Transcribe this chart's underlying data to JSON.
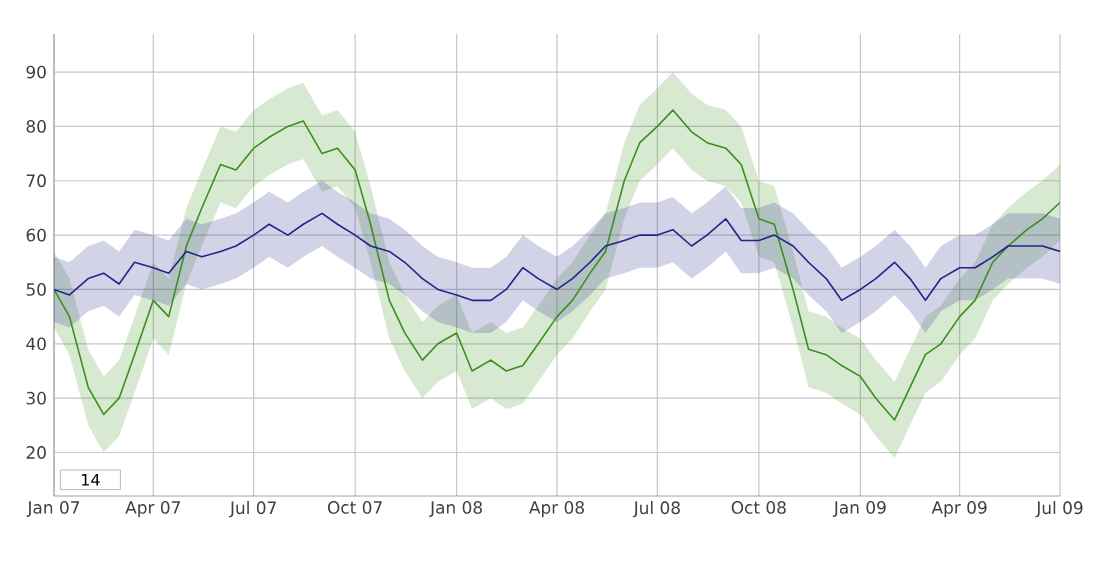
{
  "chart_data": {
    "type": "line",
    "x": [
      "2007-01-01",
      "2007-01-15",
      "2007-02-01",
      "2007-02-15",
      "2007-03-01",
      "2007-03-15",
      "2007-04-01",
      "2007-04-15",
      "2007-05-01",
      "2007-05-15",
      "2007-06-01",
      "2007-06-15",
      "2007-07-01",
      "2007-07-15",
      "2007-08-01",
      "2007-08-15",
      "2007-09-01",
      "2007-09-15",
      "2007-10-01",
      "2007-10-15",
      "2007-11-01",
      "2007-11-15",
      "2007-12-01",
      "2007-12-15",
      "2008-01-01",
      "2008-01-15",
      "2008-02-01",
      "2008-02-15",
      "2008-03-01",
      "2008-03-15",
      "2008-04-01",
      "2008-04-15",
      "2008-05-01",
      "2008-05-15",
      "2008-06-01",
      "2008-06-15",
      "2008-07-01",
      "2008-07-15",
      "2008-08-01",
      "2008-08-15",
      "2008-09-01",
      "2008-09-15",
      "2008-10-01",
      "2008-10-15",
      "2008-11-01",
      "2008-11-15",
      "2008-12-01",
      "2008-12-15",
      "2009-01-01",
      "2009-01-15",
      "2009-02-01",
      "2009-02-15",
      "2009-03-01",
      "2009-03-15",
      "2009-04-01",
      "2009-04-15",
      "2009-05-01",
      "2009-05-15",
      "2009-06-01",
      "2009-06-15",
      "2009-07-01"
    ],
    "series": [
      {
        "color": "#3a8f1e",
        "values": [
          50,
          45,
          32,
          27,
          30,
          38,
          48,
          45,
          58,
          65,
          73,
          72,
          76,
          78,
          80,
          81,
          75,
          76,
          72,
          62,
          48,
          42,
          37,
          40,
          42,
          35,
          37,
          35,
          36,
          40,
          45,
          48,
          53,
          57,
          70,
          77,
          80,
          83,
          79,
          77,
          76,
          73,
          63,
          62,
          50,
          39,
          38,
          36,
          34,
          30,
          26,
          32,
          38,
          40,
          45,
          48,
          55,
          58,
          61,
          63,
          66
        ],
        "lower": [
          43,
          38,
          25,
          20,
          23,
          31,
          41,
          38,
          51,
          58,
          66,
          65,
          69,
          71,
          73,
          74,
          68,
          69,
          65,
          55,
          41,
          35,
          30,
          33,
          35,
          28,
          30,
          28,
          29,
          33,
          38,
          41,
          46,
          50,
          63,
          70,
          73,
          76,
          72,
          70,
          69,
          66,
          56,
          55,
          43,
          32,
          31,
          29,
          27,
          23,
          19,
          25,
          31,
          33,
          38,
          41,
          48,
          51,
          54,
          56,
          59
        ],
        "upper": [
          57,
          52,
          39,
          34,
          37,
          45,
          55,
          52,
          65,
          72,
          80,
          79,
          83,
          85,
          87,
          88,
          82,
          83,
          79,
          69,
          55,
          49,
          44,
          47,
          49,
          42,
          44,
          42,
          43,
          47,
          52,
          55,
          60,
          64,
          77,
          84,
          87,
          90,
          86,
          84,
          83,
          80,
          70,
          69,
          57,
          46,
          45,
          43,
          41,
          37,
          33,
          39,
          45,
          47,
          52,
          55,
          62,
          65,
          68,
          70,
          73
        ]
      },
      {
        "color": "#23238c",
        "values": [
          50,
          49,
          52,
          53,
          51,
          55,
          54,
          53,
          57,
          56,
          57,
          58,
          60,
          62,
          60,
          62,
          64,
          62,
          60,
          58,
          57,
          55,
          52,
          50,
          49,
          48,
          48,
          50,
          54,
          52,
          50,
          52,
          55,
          58,
          59,
          60,
          60,
          61,
          58,
          60,
          63,
          59,
          59,
          60,
          58,
          55,
          52,
          48,
          50,
          52,
          55,
          52,
          48,
          52,
          54,
          54,
          56,
          58,
          58,
          58,
          57
        ],
        "lower": [
          44,
          43,
          46,
          47,
          45,
          49,
          48,
          47,
          51,
          50,
          51,
          52,
          54,
          56,
          54,
          56,
          58,
          56,
          54,
          52,
          51,
          49,
          46,
          44,
          43,
          42,
          42,
          44,
          48,
          46,
          44,
          46,
          49,
          52,
          53,
          54,
          54,
          55,
          52,
          54,
          57,
          53,
          53,
          54,
          52,
          49,
          46,
          42,
          44,
          46,
          49,
          46,
          42,
          46,
          48,
          48,
          50,
          52,
          52,
          52,
          51
        ],
        "upper": [
          56,
          55,
          58,
          59,
          57,
          61,
          60,
          59,
          63,
          62,
          63,
          64,
          66,
          68,
          66,
          68,
          70,
          68,
          66,
          64,
          63,
          61,
          58,
          56,
          55,
          54,
          54,
          56,
          60,
          58,
          56,
          58,
          61,
          64,
          65,
          66,
          66,
          67,
          64,
          66,
          69,
          65,
          65,
          66,
          64,
          61,
          58,
          54,
          56,
          58,
          61,
          58,
          54,
          58,
          60,
          60,
          62,
          64,
          64,
          64,
          63
        ]
      }
    ],
    "xlim": [
      "2007-01-01",
      "2009-07-01"
    ],
    "xticks": [
      {
        "value": "2007-01-01",
        "label": "Jan 07"
      },
      {
        "value": "2007-04-01",
        "label": "Apr 07"
      },
      {
        "value": "2007-07-01",
        "label": "Jul 07"
      },
      {
        "value": "2007-10-01",
        "label": "Oct 07"
      },
      {
        "value": "2008-01-01",
        "label": "Jan 08"
      },
      {
        "value": "2008-04-01",
        "label": "Apr 08"
      },
      {
        "value": "2008-07-01",
        "label": "Jul 08"
      },
      {
        "value": "2008-10-01",
        "label": "Oct 08"
      },
      {
        "value": "2009-01-01",
        "label": "Jan 09"
      },
      {
        "value": "2009-04-01",
        "label": "Apr 09"
      },
      {
        "value": "2009-07-01",
        "label": "Jul 09"
      }
    ],
    "ylim": [
      12,
      97
    ],
    "yticks": [
      20,
      30,
      40,
      50,
      60,
      70,
      80,
      90
    ],
    "grid": true,
    "annotations": [
      "14"
    ]
  }
}
